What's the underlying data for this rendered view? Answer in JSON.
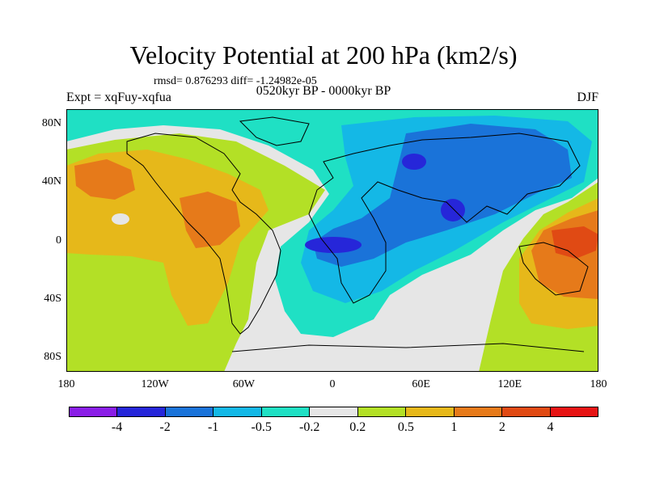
{
  "header": {
    "title": "Velocity Potential at 200 hPa (km2/s)",
    "stats": "rmsd= 0.876293 diff= -1.24982e-05",
    "expt": "Expt = xqFuy-xqfua",
    "period": "0520kyr BP - 0000kyr BP",
    "season": "DJF"
  },
  "axes": {
    "lat_ticks": [
      "80N",
      "40N",
      "0",
      "40S",
      "80S"
    ],
    "lat_values": [
      80,
      40,
      0,
      -40,
      -80
    ],
    "lon_ticks": [
      "180",
      "120W",
      "60W",
      "0",
      "60E",
      "120E",
      "180"
    ],
    "lon_values": [
      -180,
      -120,
      -60,
      0,
      60,
      120,
      180
    ]
  },
  "colorbar": {
    "colors": [
      "#8a1ee6",
      "#2626d9",
      "#1a73d9",
      "#14b8e6",
      "#1fe0c4",
      "#e6e6e6",
      "#b3e026",
      "#e6b81a",
      "#e67a1a",
      "#e04a14",
      "#e61414"
    ],
    "labels": [
      "-4",
      "-2",
      "-1",
      "-0.5",
      "-0.2",
      "0.2",
      "0.5",
      "1",
      "2",
      "4"
    ]
  },
  "palette": {
    "neg_strong": "#2626d9",
    "neg_mid": "#1a73d9",
    "neg_light": "#14b8e6",
    "neg_weak": "#1fe0c4",
    "neutral": "#e6e6e6",
    "pos_weak": "#b3e026",
    "pos_light": "#e6b81a",
    "pos_mid": "#e67a1a",
    "pos_strong": "#e04a14"
  }
}
